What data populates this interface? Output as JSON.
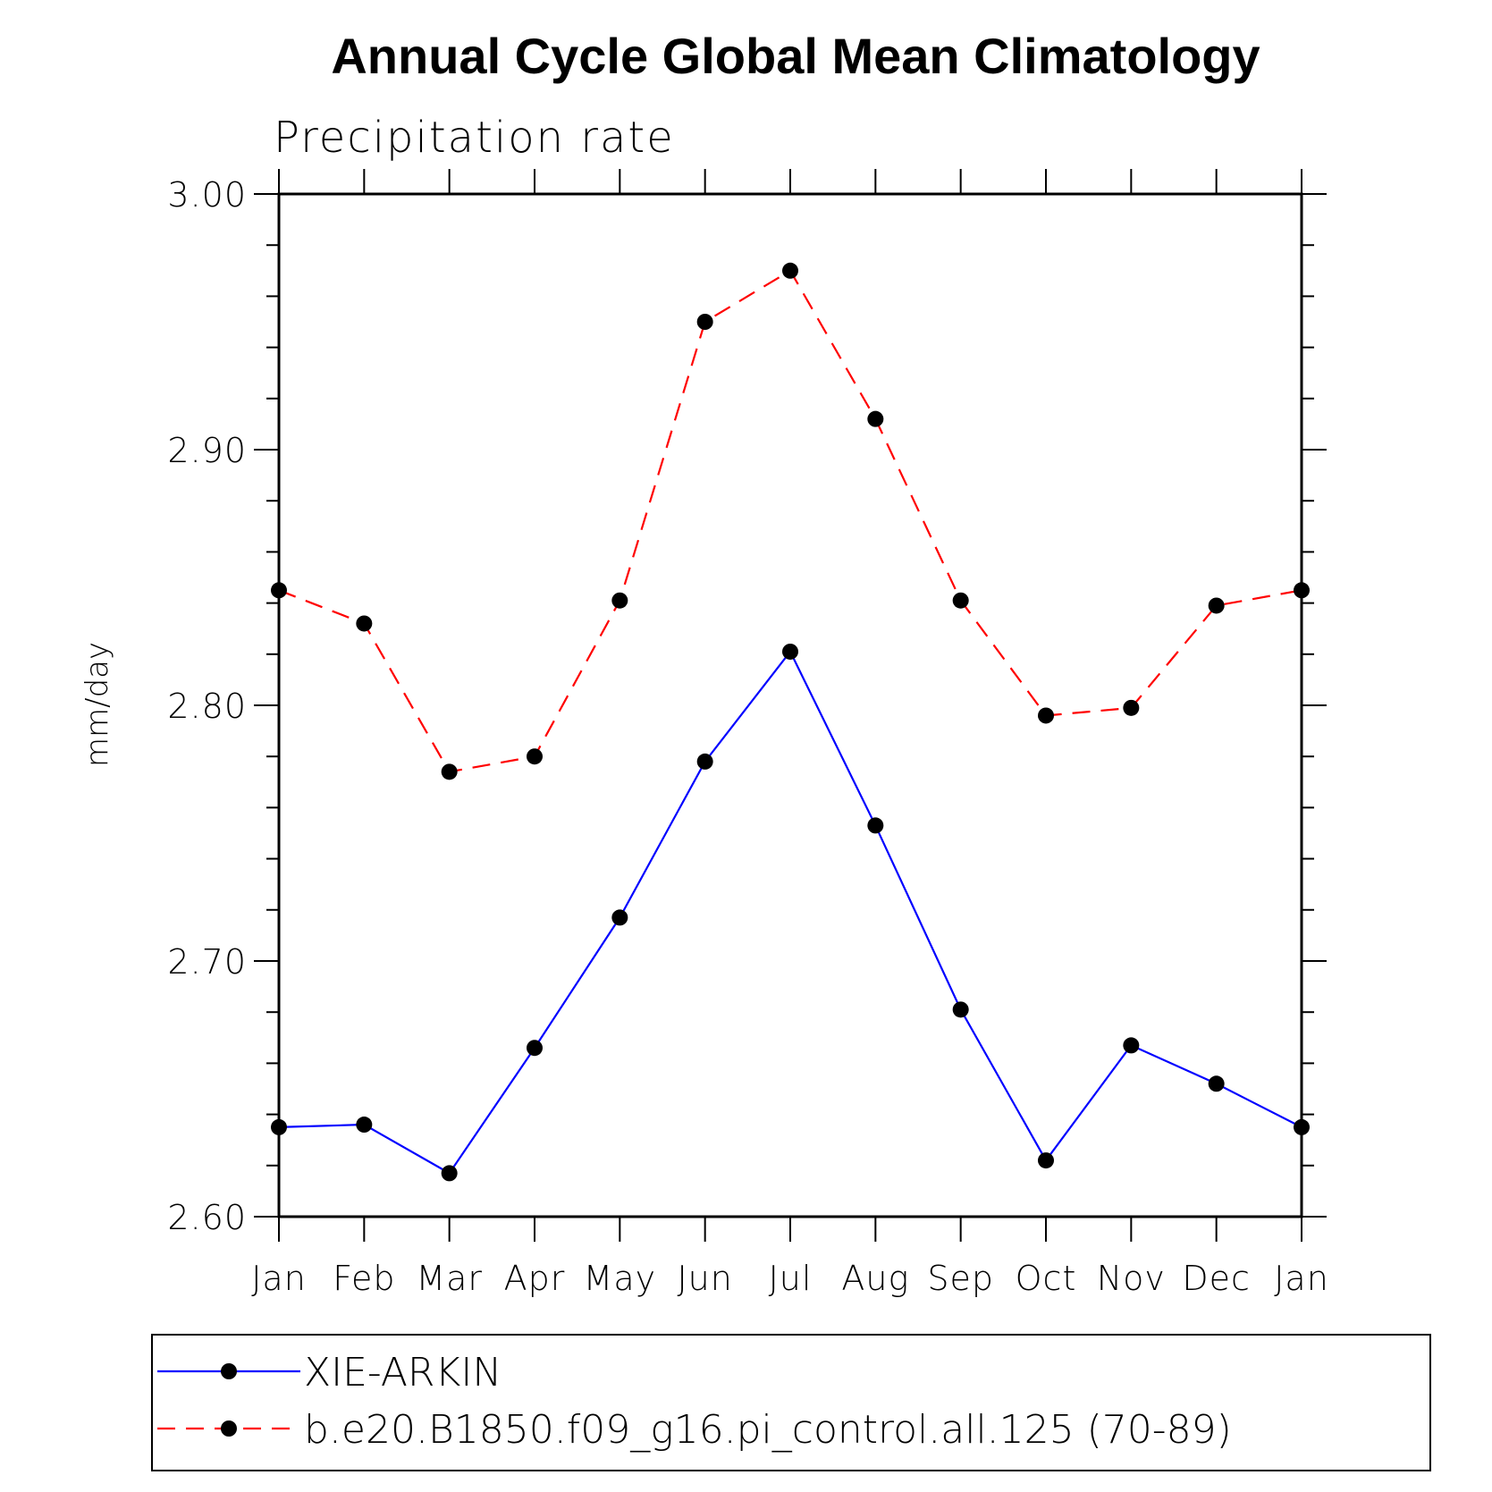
{
  "chart_data": {
    "type": "line",
    "title": "Annual Cycle Global Mean Climatology",
    "subtitle": "Precipitation rate",
    "xlabel": "",
    "ylabel": "mm/day",
    "ylim": [
      2.6,
      3.0
    ],
    "yticks": [
      "2.60",
      "2.70",
      "2.80",
      "2.90",
      "3.00"
    ],
    "ytick_values": [
      2.6,
      2.7,
      2.8,
      2.9,
      3.0
    ],
    "categories": [
      "Jan",
      "Feb",
      "Mar",
      "Apr",
      "May",
      "Jun",
      "Jul",
      "Aug",
      "Sep",
      "Oct",
      "Nov",
      "Dec",
      "Jan"
    ],
    "grid": false,
    "legend_position": "bottom",
    "series": [
      {
        "name": "XIE-ARKIN",
        "color": "#0000ff",
        "dash": "solid",
        "marker": "filled-circle",
        "values": [
          2.635,
          2.636,
          2.617,
          2.666,
          2.717,
          2.778,
          2.821,
          2.753,
          2.681,
          2.622,
          2.667,
          2.652,
          2.635
        ]
      },
      {
        "name": "b.e20.B1850.f09_g16.pi_control.all.125 (70-89)",
        "color": "#ff0000",
        "dash": "dashed",
        "marker": "filled-circle",
        "values": [
          2.845,
          2.832,
          2.774,
          2.78,
          2.841,
          2.95,
          2.97,
          2.912,
          2.841,
          2.796,
          2.799,
          2.839,
          2.845
        ]
      }
    ]
  }
}
